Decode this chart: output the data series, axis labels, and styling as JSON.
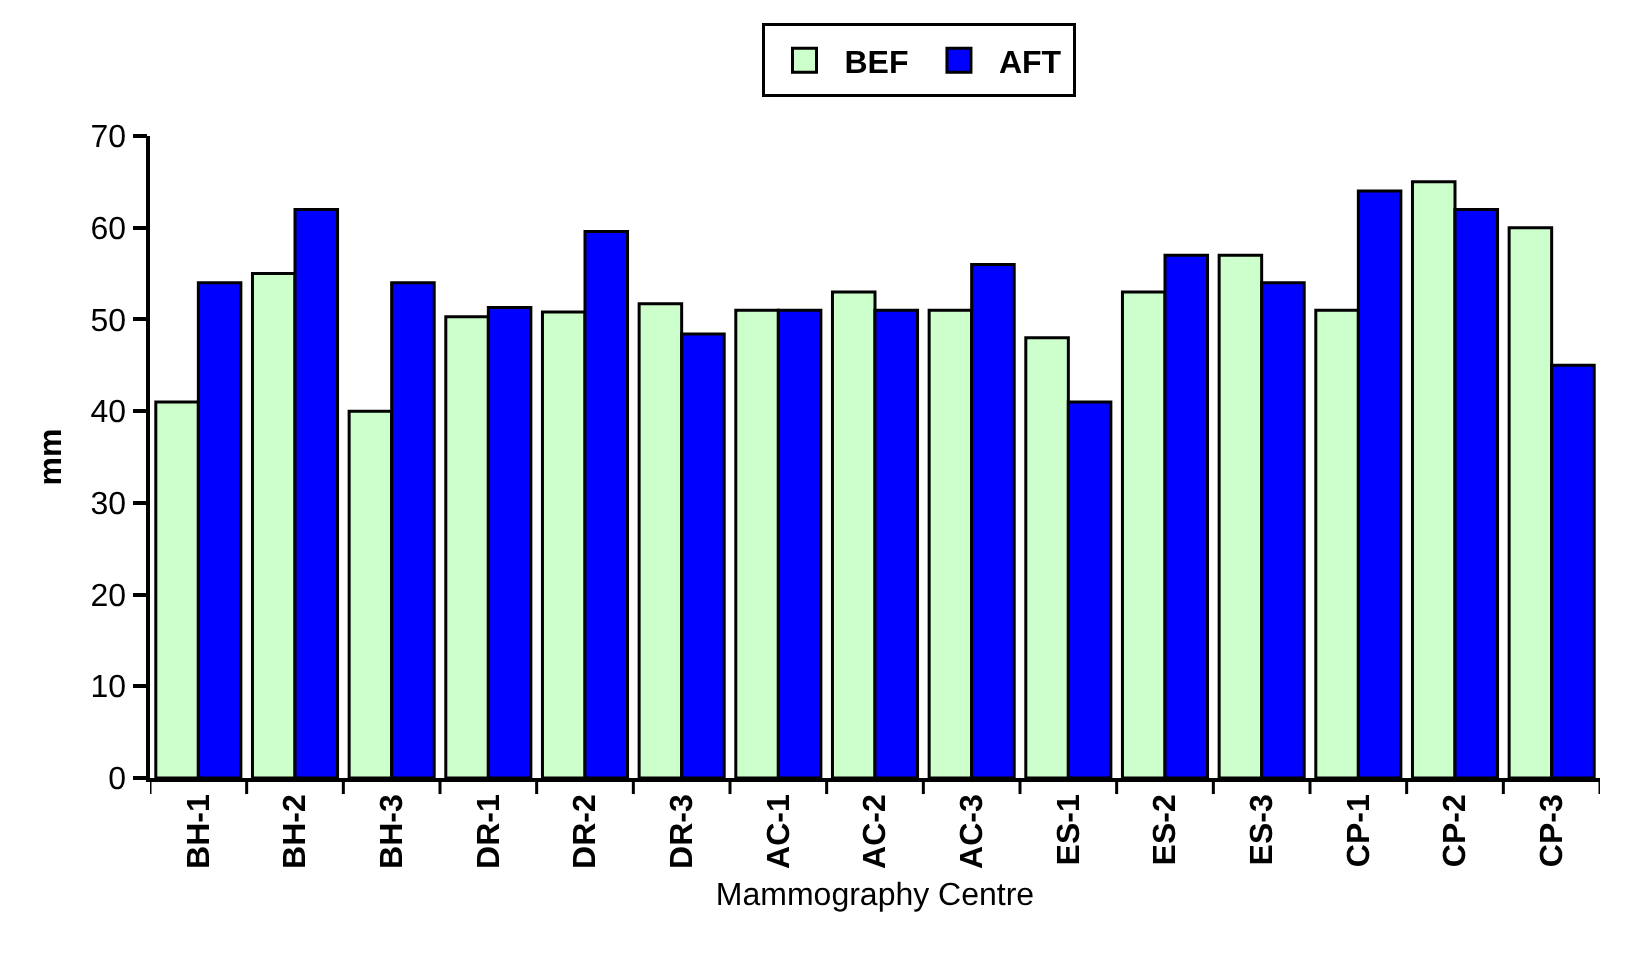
{
  "chart_data": {
    "type": "bar",
    "xlabel": "Mammography Centre",
    "ylabel": "mm",
    "categories": [
      "BH-1",
      "BH-2",
      "BH-3",
      "DR-1",
      "DR-2",
      "DR-3",
      "AC-1",
      "AC-2",
      "AC-3",
      "ES-1",
      "ES-2",
      "ES-3",
      "CP-1",
      "CP-2",
      "CP-3"
    ],
    "series": [
      {
        "name": "BEF",
        "color": "#ccffcc",
        "values": [
          41,
          55,
          40,
          50.3,
          50.8,
          51.7,
          51,
          53,
          51,
          48,
          53,
          57,
          51,
          65,
          60
        ]
      },
      {
        "name": "AFT",
        "color": "#0000ff",
        "values": [
          54,
          62,
          54,
          51.3,
          59.6,
          48.4,
          51,
          51,
          56,
          41,
          57,
          54,
          64,
          62,
          45
        ]
      }
    ],
    "ylim": [
      0,
      70
    ],
    "yticks": [
      0,
      10,
      20,
      30,
      40,
      50,
      60,
      70
    ],
    "grid": false,
    "legend": "top"
  }
}
